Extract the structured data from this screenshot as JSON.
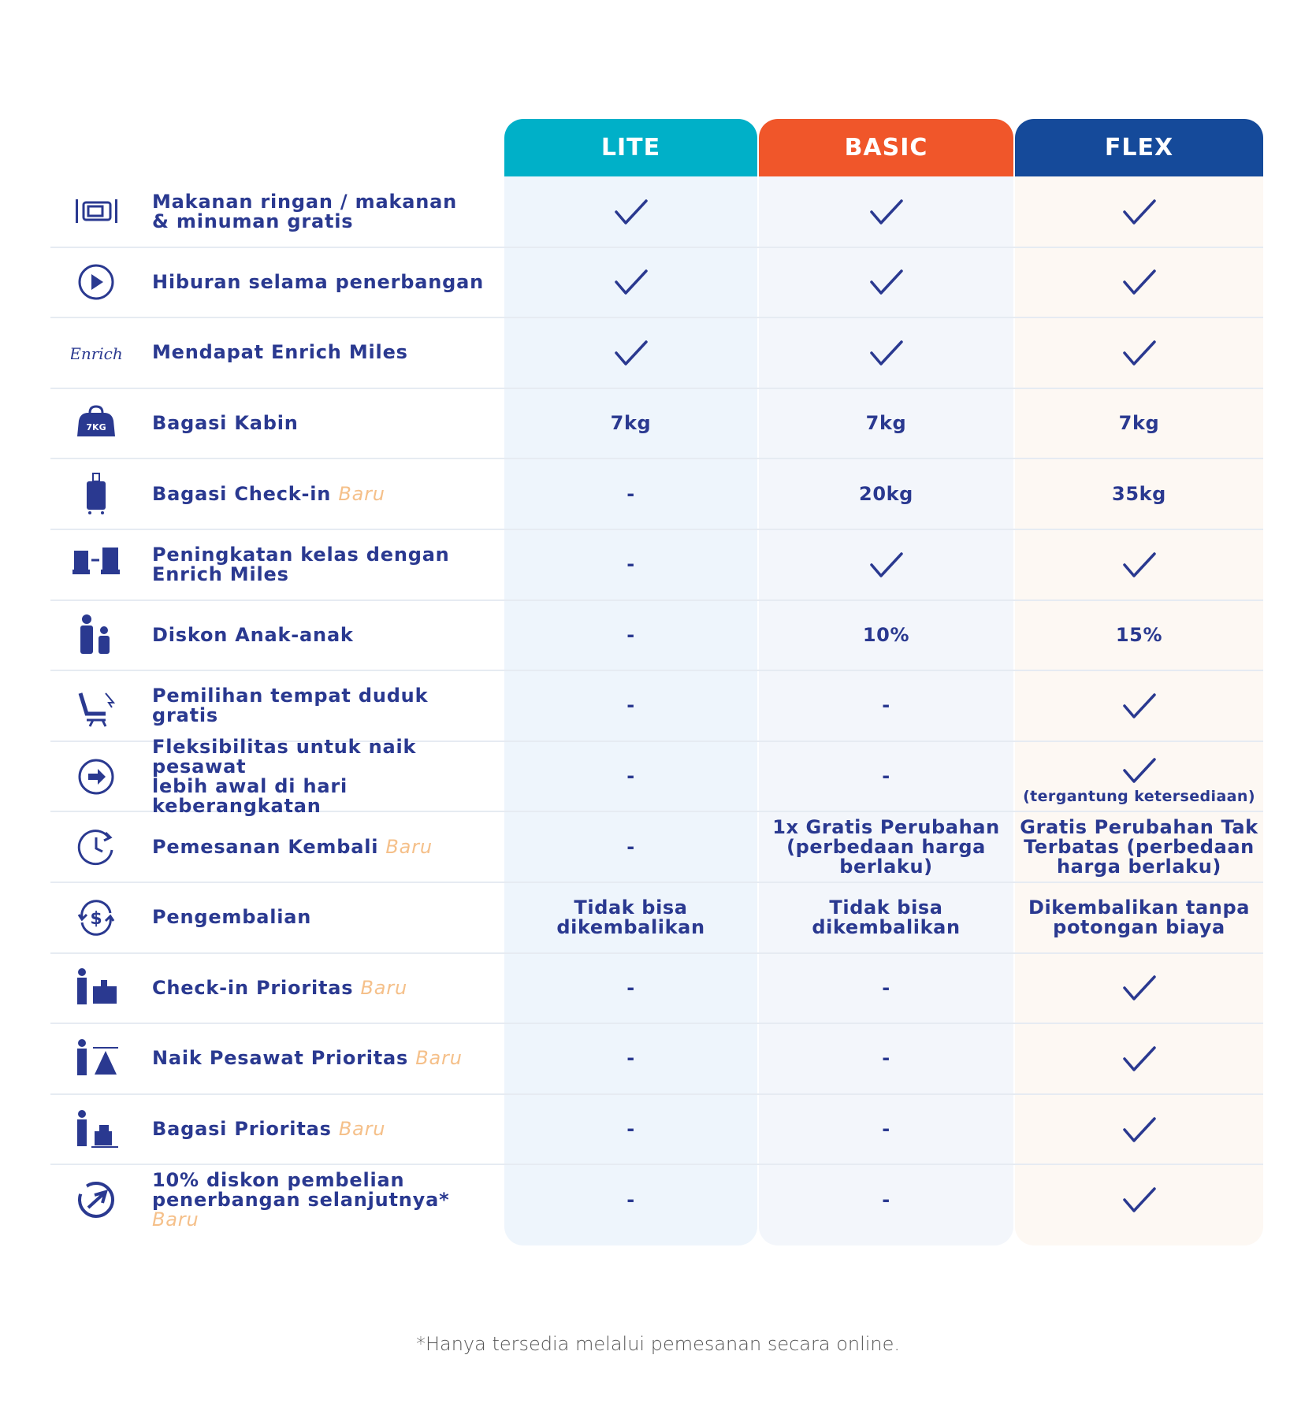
{
  "header": {
    "columns": [
      "LITE",
      "BASIC",
      "FLEX"
    ]
  },
  "rows": [
    {
      "feature": "Makanan ringan / makanan\n& minuman gratis",
      "cells": [
        true,
        true,
        true
      ]
    },
    {
      "feature": "Hiburan selama penerbangan",
      "cells": [
        true,
        true,
        true
      ]
    },
    {
      "feature": "Mendapat Enrich Miles",
      "icon_text": "Enrich",
      "cells": [
        true,
        true,
        true
      ]
    },
    {
      "feature": "Bagasi Kabin",
      "icon_text": "7KG",
      "cells": [
        "7kg",
        "7kg",
        "7kg"
      ]
    },
    {
      "feature": "Bagasi Check-in",
      "tag": "Baru",
      "cells": [
        "-",
        "20kg",
        "35kg"
      ]
    },
    {
      "feature": "Peningkatan kelas dengan\nEnrich Miles",
      "cells": [
        "-",
        true,
        true
      ]
    },
    {
      "feature": "Diskon Anak-anak",
      "cells": [
        "-",
        "10%",
        "15%"
      ]
    },
    {
      "feature": "Pemilihan tempat duduk gratis",
      "cells": [
        "-",
        "-",
        true
      ]
    },
    {
      "feature": "Fleksibilitas untuk naik pesawat\nlebih awal di hari keberangkatan",
      "cells": [
        "-",
        "-",
        {
          "check": true,
          "note": "(tergantung ketersediaan)"
        }
      ]
    },
    {
      "feature": "Pemesanan Kembali",
      "tag": "Baru",
      "cells": [
        "-",
        "1x Gratis Perubahan\n(perbedaan harga\nberlaku)",
        "Gratis Perubahan Tak\nTerbatas (perbedaan\nharga berlaku)"
      ]
    },
    {
      "feature": "Pengembalian",
      "cells": [
        "Tidak bisa\ndikembalikan",
        "Tidak bisa\ndikembalikan",
        "Dikembalikan tanpa\npotongan biaya"
      ]
    },
    {
      "feature": "Check-in Prioritas",
      "tag": "Baru",
      "cells": [
        "-",
        "-",
        true
      ]
    },
    {
      "feature": "Naik Pesawat Prioritas",
      "tag": "Baru",
      "cells": [
        "-",
        "-",
        true
      ]
    },
    {
      "feature": "Bagasi Prioritas",
      "tag": "Baru",
      "cells": [
        "-",
        "-",
        true
      ]
    },
    {
      "feature": "10% diskon pembelian\npenerbangan selanjutnya*",
      "tag": "Baru",
      "cells": [
        "-",
        "-",
        true
      ]
    }
  ],
  "footnote": "*Hanya tersedia melalui pemesanan secara online."
}
